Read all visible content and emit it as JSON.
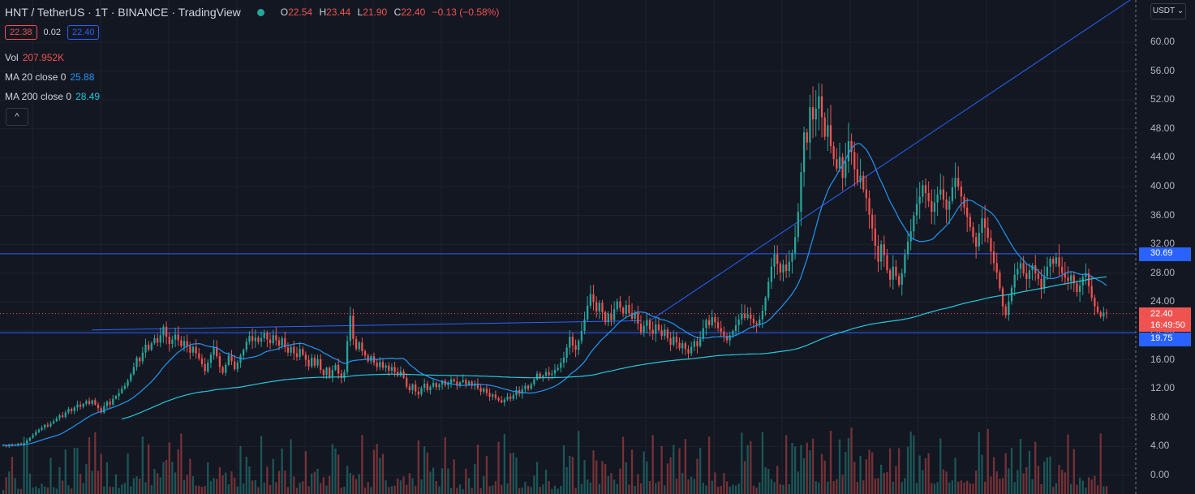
{
  "header": {
    "title": "HNT / TetherUS · 1T · BINANCE · TradingView",
    "ohlc": [
      {
        "label": "O",
        "value": "22.54"
      },
      {
        "label": "H",
        "value": "23.44"
      },
      {
        "label": "L",
        "value": "21.90"
      },
      {
        "label": "C",
        "value": "22.40"
      }
    ],
    "change": "−0.13 (−0.58%)",
    "bid": "22.38",
    "spread": "0.02",
    "ask": "22.40"
  },
  "indicators": {
    "volume": {
      "label": "Vol",
      "value": "207.952K"
    },
    "ma20": {
      "label": "MA 20 close 0",
      "value": "25.88"
    },
    "ma200": {
      "label": "MA 200 close 0",
      "value": "28.49"
    },
    "collapse_glyph": "^"
  },
  "currency": "USDT ⌄",
  "tags": {
    "resistance": "30.69",
    "last_price": "22.40",
    "countdown": "16:49:50",
    "support": "19.75"
  },
  "colors": {
    "up": "#26a69a",
    "down": "#ef5350",
    "ma20": "#2196f3",
    "ma200": "#26c6da",
    "level_line": "#2962ff",
    "background": "#131722"
  },
  "chart_data": {
    "type": "candlestick",
    "symbol": "HNT / TetherUS",
    "interval": "1T",
    "exchange": "BINANCE",
    "y_ticks": [
      "60.00",
      "56.00",
      "52.00",
      "48.00",
      "44.00",
      "40.00",
      "36.00",
      "32.00",
      "28.00",
      "24.00",
      "20.00",
      "16.00",
      "12.00",
      "8.00",
      "4.00",
      "0.00"
    ],
    "ylim": [
      0,
      60
    ],
    "horizontal_levels": [
      30.69,
      19.75
    ],
    "last_price": 22.4,
    "close": [
      4.2,
      4.0,
      4.3,
      4.1,
      4.2,
      4.4,
      4.3,
      4.5,
      4.8,
      5.2,
      5.6,
      6.0,
      6.3,
      6.6,
      7.0,
      6.8,
      7.2,
      7.5,
      7.9,
      8.3,
      8.1,
      8.7,
      9.2,
      8.9,
      9.4,
      9.8,
      9.5,
      9.9,
      10.3,
      9.9,
      10.4,
      9.8,
      9.3,
      8.7,
      9.6,
      10.2,
      9.8,
      10.6,
      11.0,
      11.4,
      12.0,
      12.4,
      13.1,
      14.0,
      15.0,
      16.3,
      15.8,
      17.0,
      18.1,
      17.4,
      18.3,
      19.0,
      18.4,
      19.4,
      20.6,
      19.2,
      18.2,
      18.8,
      19.5,
      18.7,
      17.9,
      18.6,
      17.9,
      17.0,
      17.8,
      16.9,
      16.2,
      15.4,
      14.4,
      15.6,
      16.7,
      17.8,
      16.5,
      15.0,
      14.2,
      15.3,
      16.6,
      15.8,
      14.7,
      15.6,
      16.6,
      17.4,
      18.5,
      19.3,
      18.6,
      19.1,
      18.5,
      19.0,
      19.7,
      18.8,
      18.3,
      19.4,
      18.7,
      18.0,
      19.0,
      17.7,
      17.0,
      17.8,
      16.9,
      16.4,
      17.5,
      16.7,
      16.0,
      15.1,
      16.3,
      15.2,
      16.1,
      14.6,
      13.9,
      14.9,
      13.7,
      14.6,
      15.3,
      14.1,
      13.5,
      14.3,
      18.6,
      22.1,
      18.9,
      17.5,
      18.4,
      17.2,
      16.6,
      15.8,
      16.5,
      15.6,
      15.0,
      15.7,
      14.9,
      15.2,
      14.5,
      15.0,
      14.3,
      13.8,
      14.4,
      13.5,
      12.3,
      11.8,
      12.6,
      11.6,
      11.2,
      12.1,
      12.7,
      11.8,
      12.3,
      12.8,
      12.2,
      12.6,
      13.1,
      12.5,
      12.8,
      13.3,
      13.0,
      12.4,
      12.9,
      13.2,
      12.6,
      13.0,
      12.4,
      12.7,
      12.1,
      11.6,
      12.0,
      11.4,
      10.9,
      11.2,
      10.7,
      10.4,
      10.1,
      10.5,
      10.9,
      10.6,
      11.1,
      11.8,
      11.3,
      11.9,
      12.4,
      12.0,
      12.6,
      13.3,
      14.1,
      13.5,
      13.8,
      14.3,
      13.9,
      14.1,
      14.6,
      14.9,
      15.6,
      16.3,
      17.7,
      19.2,
      18.0,
      17.4,
      18.6,
      20.0,
      21.6,
      23.5,
      25.1,
      24.0,
      22.7,
      23.9,
      22.6,
      21.2,
      22.4,
      21.5,
      23.0,
      24.1,
      23.2,
      22.4,
      23.6,
      22.5,
      21.7,
      22.6,
      21.0,
      19.8,
      20.7,
      21.5,
      20.2,
      19.6,
      20.9,
      20.1,
      19.3,
      20.2,
      19.0,
      18.1,
      19.2,
      18.4,
      17.6,
      18.3,
      17.5,
      16.9,
      17.8,
      18.6,
      17.9,
      18.9,
      20.4,
      21.5,
      20.8,
      21.9,
      21.2,
      20.4,
      19.9,
      19.3,
      18.7,
      19.4,
      20.0,
      20.8,
      21.6,
      22.4,
      21.8,
      22.3,
      21.7,
      21.1,
      20.9,
      21.6,
      22.8,
      24.6,
      26.8,
      28.9,
      30.6,
      29.3,
      28.1,
      29.2,
      28.3,
      29.6,
      30.8,
      33.0,
      36.5,
      42.0,
      47.5,
      46.1,
      51.0,
      49.3,
      50.8,
      52.5,
      49.6,
      46.9,
      48.5,
      45.6,
      43.8,
      42.5,
      44.1,
      41.2,
      43.5,
      46.3,
      44.8,
      42.4,
      40.6,
      41.5,
      39.6,
      38.4,
      36.1,
      34.2,
      31.8,
      29.6,
      32.0,
      30.5,
      28.4,
      27.1,
      28.9,
      27.6,
      26.4,
      28.0,
      30.6,
      32.4,
      33.8,
      36.0,
      37.6,
      38.6,
      40.2,
      39.1,
      38.0,
      36.5,
      37.8,
      38.9,
      39.6,
      38.2,
      36.8,
      38.0,
      39.9,
      41.2,
      40.0,
      38.6,
      37.1,
      35.8,
      34.4,
      33.0,
      31.7,
      33.6,
      35.6,
      34.3,
      32.9,
      31.0,
      29.4,
      28.1,
      25.9,
      23.4,
      22.2,
      24.1,
      26.0,
      27.8,
      28.6,
      29.4,
      28.0,
      27.2,
      28.4,
      29.1,
      28.0,
      27.2,
      25.9,
      27.6,
      28.9,
      30.0,
      29.3,
      30.2,
      28.9,
      28.0,
      27.4,
      26.9,
      27.7,
      26.6,
      25.4,
      26.3,
      27.5,
      28.0,
      26.2,
      24.6,
      23.4,
      22.6,
      22.0,
      22.54,
      22.4
    ],
    "ma20_latest": 25.88,
    "ma200_latest": 28.49,
    "volume_latest": "207.952K",
    "trendlines": 2
  }
}
